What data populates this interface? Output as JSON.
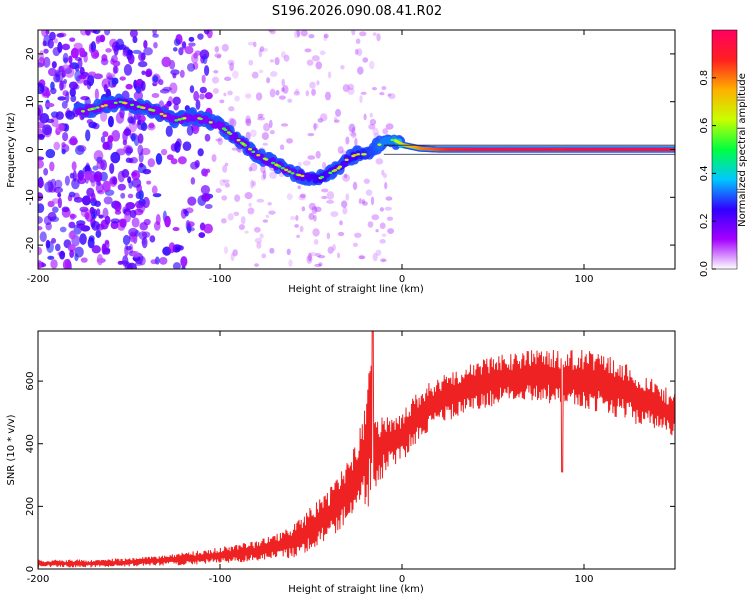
{
  "figure": {
    "title": "S196.2026.090.08.41.R02"
  },
  "chart_data": [
    {
      "type": "heatmap",
      "name": "spectrogram",
      "xlabel": "Height of straight line (km)",
      "ylabel": "Frequency (Hz)",
      "xlim": [
        -200,
        150
      ],
      "ylim": [
        -25,
        25
      ],
      "xticks": [
        -200,
        -100,
        0,
        100
      ],
      "yticks": [
        -20,
        -10,
        0,
        10,
        20
      ],
      "colorbar": {
        "label": "Normalized spectral amplitude",
        "range": [
          0,
          1
        ],
        "ticks": [
          "0.0",
          "0.2",
          "0.4",
          "0.6",
          "0.8"
        ],
        "colors": [
          "#ffffff",
          "#a300ff",
          "#3000ff",
          "#00c8ff",
          "#00ff40",
          "#c8ff00",
          "#ffb000",
          "#ff2020",
          "#ff0060"
        ]
      },
      "ridge": {
        "x": [
          -175,
          -165,
          -155,
          -145,
          -135,
          -125,
          -115,
          -100,
          -90,
          -80,
          -70,
          -60,
          -50,
          -45,
          -40,
          -35,
          -30,
          -25,
          -20,
          -15,
          -10,
          -5,
          0,
          10,
          20,
          40,
          60,
          80,
          85,
          90,
          120,
          150
        ],
        "y": [
          8,
          9,
          10,
          9,
          8,
          6,
          7,
          5,
          2,
          -1,
          -3,
          -5,
          -6,
          -6,
          -5,
          -4,
          -2,
          -1,
          -1,
          0.5,
          1.5,
          2,
          1,
          0.2,
          0,
          0,
          0,
          0,
          0,
          0,
          0,
          0
        ],
        "amplitude": [
          0.3,
          0.3,
          0.35,
          0.35,
          0.3,
          0.3,
          0.3,
          0.3,
          0.35,
          0.35,
          0.35,
          0.35,
          0.4,
          0.45,
          0.4,
          0.4,
          0.4,
          0.45,
          0.5,
          0.55,
          0.6,
          0.6,
          0.7,
          0.8,
          0.85,
          0.95,
          0.95,
          0.95,
          0.9,
          0.95,
          0.95,
          0.95
        ]
      }
    },
    {
      "type": "line",
      "name": "snr",
      "xlabel": "Height of straight line (km)",
      "ylabel": "SNR (10 * v/v)",
      "xlim": [
        -200,
        150
      ],
      "ylim": [
        0,
        760
      ],
      "xticks": [
        -200,
        -100,
        0,
        100
      ],
      "yticks": [
        0,
        200,
        400,
        600
      ],
      "series_color": "#ee2222",
      "envelope": {
        "x": [
          -200,
          -170,
          -150,
          -130,
          -110,
          -90,
          -80,
          -70,
          -60,
          -50,
          -40,
          -35,
          -30,
          -25,
          -20,
          -18,
          -15,
          -10,
          -5,
          0,
          5,
          10,
          20,
          30,
          40,
          50,
          60,
          70,
          80,
          90,
          100,
          110,
          120,
          130,
          140,
          150
        ],
        "lower": [
          5,
          5,
          8,
          10,
          15,
          20,
          25,
          30,
          35,
          60,
          90,
          120,
          150,
          180,
          200,
          180,
          220,
          300,
          330,
          340,
          380,
          420,
          460,
          480,
          500,
          520,
          530,
          540,
          530,
          520,
          510,
          500,
          480,
          460,
          440,
          420
        ],
        "upper": [
          30,
          30,
          35,
          45,
          60,
          80,
          90,
          110,
          140,
          200,
          260,
          300,
          360,
          420,
          520,
          760,
          480,
          500,
          480,
          500,
          540,
          580,
          610,
          640,
          660,
          680,
          690,
          700,
          700,
          700,
          700,
          690,
          670,
          640,
          600,
          560
        ]
      },
      "spike": {
        "x": -16,
        "y": 760
      },
      "dip": {
        "x": 88,
        "y": 310
      }
    }
  ]
}
